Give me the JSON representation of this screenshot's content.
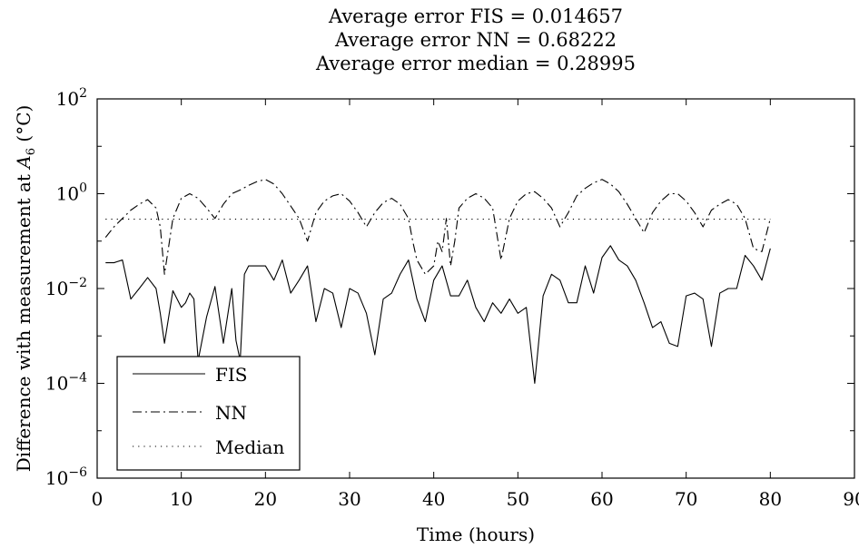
{
  "chart_data": {
    "type": "line",
    "title_lines": [
      "Average error FIS = 0.014657",
      "Average error NN = 0.68222",
      "Average error median = 0.28995"
    ],
    "xlabel": "Time (hours)",
    "ylabel_parts": {
      "pre": "Difference with measurement at ",
      "var": "A",
      "sub": "6",
      "post": " (°C)"
    },
    "xlim": [
      0,
      90
    ],
    "ylim": [
      1e-06,
      100
    ],
    "yscale": "log",
    "grid": false,
    "legend_position": "bottom-left",
    "x_ticks": [
      "0",
      "10",
      "20",
      "30",
      "40",
      "50",
      "60",
      "70",
      "80",
      "90"
    ],
    "y_ticks": [
      {
        "base": "10",
        "exp": "2",
        "value": 100
      },
      {
        "base": "10",
        "exp": "0",
        "value": 1
      },
      {
        "base": "10",
        "exp": "−2",
        "value": 0.01
      },
      {
        "base": "10",
        "exp": "−4",
        "value": 0.0001
      },
      {
        "base": "10",
        "exp": "−6",
        "value": 1e-06
      }
    ],
    "series": [
      {
        "name": "FIS",
        "dash": "solid",
        "x": [
          1,
          2,
          3,
          4,
          5,
          6,
          7,
          7.5,
          8,
          9,
          10,
          10.5,
          11,
          11.5,
          12,
          13,
          14,
          15,
          16,
          16.5,
          17,
          17.5,
          18,
          19,
          20,
          21,
          22,
          23,
          24,
          25,
          26,
          27,
          28,
          29,
          30,
          31,
          32,
          33,
          34,
          35,
          36,
          37,
          38,
          39,
          40,
          41,
          42,
          43,
          44,
          45,
          46,
          47,
          48,
          49,
          50,
          51,
          52,
          53,
          54,
          55,
          56,
          57,
          58,
          59,
          60,
          61,
          62,
          63,
          64,
          65,
          66,
          67,
          68,
          69,
          70,
          71,
          72,
          73,
          74,
          75,
          76,
          77,
          78,
          79,
          80
        ],
        "y": [
          0.035,
          0.035,
          0.04,
          0.006,
          0.01,
          0.017,
          0.01,
          0.003,
          0.0007,
          0.009,
          0.004,
          0.005,
          0.008,
          0.006,
          0.0003,
          0.0025,
          0.011,
          0.0007,
          0.01,
          0.0008,
          0.0003,
          0.02,
          0.03,
          0.03,
          0.03,
          0.015,
          0.04,
          0.008,
          0.015,
          0.03,
          0.002,
          0.01,
          0.008,
          0.0015,
          0.01,
          0.008,
          0.003,
          0.0004,
          0.006,
          0.008,
          0.02,
          0.04,
          0.006,
          0.002,
          0.015,
          0.03,
          0.007,
          0.007,
          0.015,
          0.004,
          0.002,
          0.005,
          0.003,
          0.006,
          0.003,
          0.004,
          0.0001,
          0.007,
          0.02,
          0.015,
          0.005,
          0.005,
          0.03,
          0.008,
          0.045,
          0.08,
          0.04,
          0.03,
          0.015,
          0.005,
          0.0015,
          0.002,
          0.0007,
          0.0006,
          0.007,
          0.008,
          0.006,
          0.0006,
          0.008,
          0.01,
          0.01,
          0.05,
          0.03,
          0.015,
          0.07
        ]
      },
      {
        "name": "NN",
        "dash": "dashdot",
        "x": [
          1,
          2,
          3,
          4,
          5,
          6,
          7,
          7.5,
          8,
          9,
          10,
          11,
          12,
          13,
          14,
          15,
          16,
          17,
          18,
          19,
          20,
          21,
          22,
          23,
          24,
          25,
          26,
          27,
          28,
          29,
          30,
          31,
          32,
          33,
          34,
          35,
          36,
          37,
          37.5,
          38,
          39,
          40,
          40.5,
          41,
          41.5,
          42,
          42.5,
          43,
          44,
          45,
          46,
          47,
          48,
          49,
          50,
          51,
          52,
          53,
          54,
          55,
          56,
          57,
          58,
          59,
          60,
          61,
          62,
          63,
          64,
          65,
          66,
          67,
          68,
          69,
          70,
          71,
          72,
          73,
          74,
          75,
          76,
          77,
          78,
          79,
          80
        ],
        "y": [
          0.12,
          0.2,
          0.3,
          0.45,
          0.6,
          0.75,
          0.5,
          0.2,
          0.02,
          0.3,
          0.8,
          1,
          0.8,
          0.5,
          0.3,
          0.6,
          1,
          1.2,
          1.5,
          1.8,
          2.0,
          1.6,
          1.0,
          0.55,
          0.3,
          0.1,
          0.4,
          0.7,
          0.9,
          1.0,
          0.7,
          0.4,
          0.2,
          0.4,
          0.65,
          0.8,
          0.6,
          0.3,
          0.1,
          0.04,
          0.02,
          0.03,
          0.1,
          0.06,
          0.3,
          0.03,
          0.1,
          0.5,
          0.8,
          1.0,
          0.8,
          0.5,
          0.04,
          0.3,
          0.7,
          1.0,
          1.1,
          0.8,
          0.5,
          0.2,
          0.4,
          0.9,
          1.3,
          1.7,
          2.0,
          1.6,
          1.1,
          0.6,
          0.3,
          0.15,
          0.4,
          0.7,
          1.0,
          1.0,
          0.7,
          0.4,
          0.2,
          0.45,
          0.6,
          0.75,
          0.6,
          0.3,
          0.07,
          0.06,
          0.3
        ]
      },
      {
        "name": "Median",
        "dash": "dotted",
        "x": [
          1,
          80
        ],
        "y": [
          0.28995,
          0.28995
        ]
      }
    ]
  }
}
